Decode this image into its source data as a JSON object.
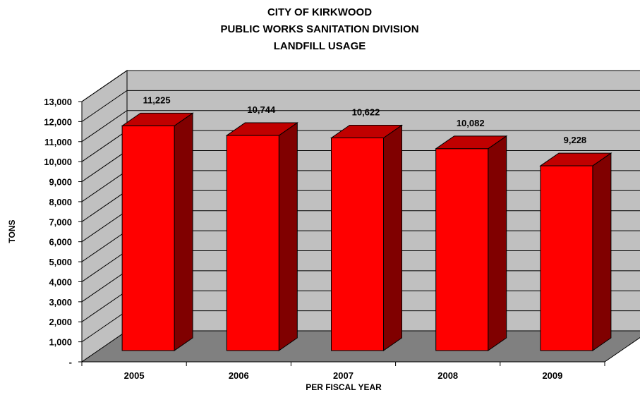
{
  "chart_data": {
    "type": "bar",
    "title": [
      "CITY OF KIRKWOOD",
      "PUBLIC WORKS SANITATION DIVISION",
      "LANDFILL USAGE"
    ],
    "xlabel": "PER FISCAL YEAR",
    "ylabel": "TONS",
    "categories": [
      "2005",
      "2006",
      "2007",
      "2008",
      "2009"
    ],
    "values": [
      11225,
      10744,
      10622,
      10082,
      9228
    ],
    "data_labels": [
      "11,225",
      "10,744",
      "10,622",
      "10,082",
      "9,228"
    ],
    "ylim": [
      0,
      13000
    ],
    "y_ticks": [
      0,
      1000,
      2000,
      3000,
      4000,
      5000,
      6000,
      7000,
      8000,
      9000,
      10000,
      11000,
      12000,
      13000
    ],
    "y_tick_labels": [
      "-",
      "1,000",
      "2,000",
      "3,000",
      "4,000",
      "5,000",
      "6,000",
      "7,000",
      "8,000",
      "9,000",
      "10,000",
      "11,000",
      "12,000",
      "13,000"
    ],
    "grid": true,
    "legend": "none",
    "style": "3d",
    "colors": {
      "bar_front": "#ff0000",
      "bar_side": "#800000",
      "bar_top": "#c00000",
      "wall": "#c0c0c0",
      "floor": "#808080"
    }
  }
}
